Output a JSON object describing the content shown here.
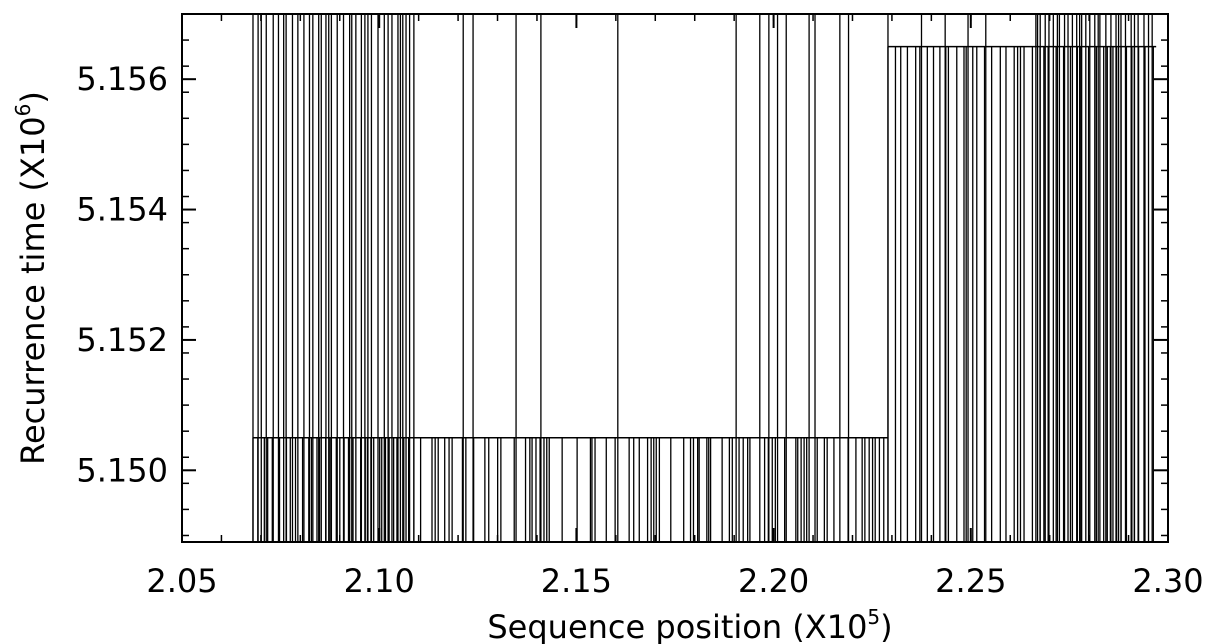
{
  "chart_data": {
    "type": "line",
    "xlabel_main": "Sequence position (X10",
    "xlabel_exp": "5",
    "xlabel_tail": ")",
    "ylabel_main": "Recurrence time (X10",
    "ylabel_exp": "6",
    "ylabel_tail": ")",
    "xlim": [
      2.05,
      2.3
    ],
    "ylim": [
      5.1489,
      5.157
    ],
    "xticks": [
      {
        "value": 2.05,
        "label": "2.05"
      },
      {
        "value": 2.1,
        "label": "2.10"
      },
      {
        "value": 2.15,
        "label": "2.15"
      },
      {
        "value": 2.2,
        "label": "2.20"
      },
      {
        "value": 2.25,
        "label": "2.25"
      },
      {
        "value": 2.3,
        "label": "2.30"
      }
    ],
    "yticks": [
      {
        "value": 5.15,
        "label": "5.150"
      },
      {
        "value": 5.152,
        "label": "5.152"
      },
      {
        "value": 5.154,
        "label": "5.154"
      },
      {
        "value": 5.156,
        "label": "5.156"
      }
    ],
    "levels": {
      "low": 5.1505,
      "high": 5.1565
    },
    "segments": [
      {
        "name": "dense-cluster-left",
        "x_start": 2.068,
        "x_end": 2.1105,
        "level": 5.1505,
        "x_max_top": 2.1105
      },
      {
        "name": "sparse-middle",
        "x_start": 2.1105,
        "x_end": 2.229,
        "level": 5.1505
      },
      {
        "name": "right-block",
        "x_start": 2.229,
        "x_end": 2.297,
        "level": 5.1565
      }
    ],
    "line_color": "#000000",
    "grid": false
  }
}
